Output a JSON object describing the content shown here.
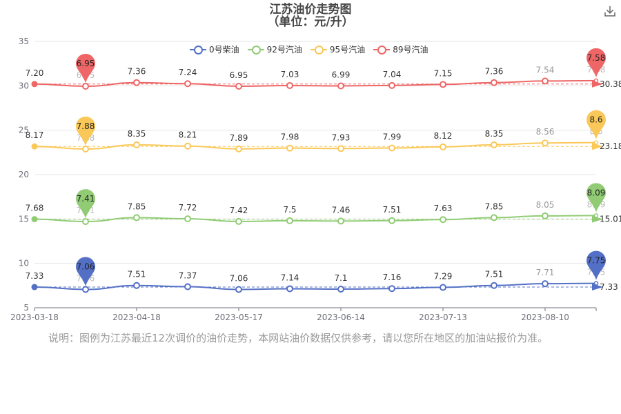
{
  "page": {
    "title_line1": "江苏油价走势图",
    "title_line2": "（单位：元/升）",
    "note": "说明：图例为江苏最近12次调价的油价走势，本网站油价数据仅供参考，请以您所在地区的加油站报价为准。",
    "download_icon": "download-icon"
  },
  "chart_data": {
    "type": "line",
    "x_tick_labels": [
      "2023-03-18",
      "2023-04-18",
      "2023-05-17",
      "2023-06-14",
      "2023-07-13",
      "2023-08-10"
    ],
    "y_tick_labels": [
      "5",
      "10",
      "15",
      "20",
      "25",
      "30",
      "35"
    ],
    "ylim": [
      5,
      35
    ],
    "grid": true,
    "legend_position": "top-center",
    "series": [
      {
        "name": "0号柴油",
        "color": "#5470c6",
        "values": [
          7.33,
          7.06,
          7.51,
          7.37,
          7.06,
          7.14,
          7.1,
          7.16,
          7.29,
          7.51,
          7.71,
          7.75
        ],
        "offset": 0,
        "labels": [
          "7.33",
          "7.06",
          "7.51",
          "7.37",
          "7.06",
          "7.14",
          "7.1",
          "7.16",
          "7.29",
          "7.51",
          "7.71",
          "7.75"
        ],
        "min_pin": "7.06",
        "max_pin": "7.75",
        "avg_label": "7.33"
      },
      {
        "name": "92号汽油",
        "color": "#91cc75",
        "values": [
          7.68,
          7.41,
          7.85,
          7.72,
          7.42,
          7.5,
          7.46,
          7.51,
          7.63,
          7.85,
          8.05,
          8.09
        ],
        "offset": 7.3,
        "labels": [
          "7.68",
          "7.41",
          "7.85",
          "7.72",
          "7.42",
          "7.5",
          "7.46",
          "7.51",
          "7.63",
          "7.85",
          "8.05",
          "8.09"
        ],
        "min_pin": "7.41",
        "max_pin": "8.09",
        "avg_label": "15.01"
      },
      {
        "name": "95号汽油",
        "color": "#fac858",
        "values": [
          8.17,
          7.88,
          8.35,
          8.21,
          7.89,
          7.98,
          7.93,
          7.99,
          8.12,
          8.35,
          8.56,
          8.6
        ],
        "offset": 15,
        "labels": [
          "8.17",
          "7.88",
          "8.35",
          "8.21",
          "7.89",
          "7.98",
          "7.93",
          "7.99",
          "8.12",
          "8.35",
          "8.56",
          "8.6"
        ],
        "min_pin": "7.88",
        "max_pin": "8.6",
        "avg_label": "23.18"
      },
      {
        "name": "89号汽油",
        "color": "#ee6666",
        "values": [
          7.2,
          6.95,
          7.36,
          7.24,
          6.95,
          7.03,
          6.99,
          7.04,
          7.15,
          7.36,
          7.54,
          7.58
        ],
        "offset": 23,
        "labels": [
          "7.20",
          "6.95",
          "7.36",
          "7.24",
          "6.95",
          "7.03",
          "6.99",
          "7.04",
          "7.15",
          "7.36",
          "7.54",
          "7.58"
        ],
        "min_pin": "6.95",
        "max_pin": "7.58",
        "avg_label": "30.38"
      }
    ]
  }
}
